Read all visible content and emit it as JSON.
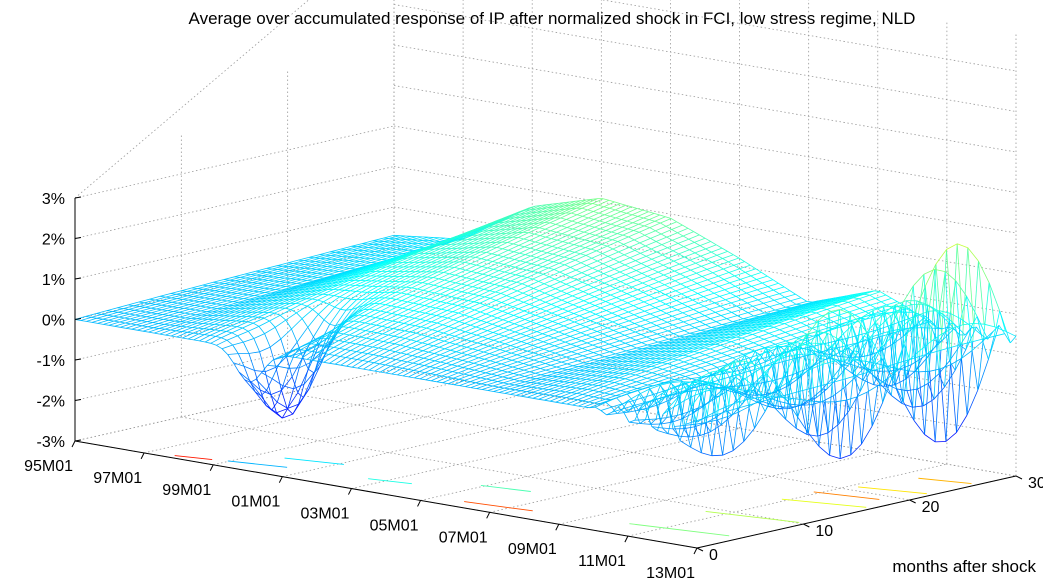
{
  "chart_data": {
    "type": "surface",
    "title": "Average over accumulated response of IP after normalized shock in FCI, low stress regime, NLD",
    "xlabel": "",
    "ylabel": "months after shock",
    "zlabel": "",
    "x_ticks": [
      "95M01",
      "97M01",
      "99M01",
      "01M01",
      "03M01",
      "05M01",
      "07M01",
      "09M01",
      "11M01",
      "13M01"
    ],
    "y_ticks": [
      "0",
      "10",
      "20",
      "30"
    ],
    "z_ticks": [
      "-3%",
      "-2%",
      "-1%",
      "0%",
      "1%",
      "2%",
      "3%"
    ],
    "zlim": [
      -3,
      3
    ],
    "ylim": [
      0,
      30
    ],
    "grid": true,
    "colormap": "jet",
    "contour_projection_on_floor": true,
    "approx_profile_at_horizon_30": {
      "dates": [
        "95M01",
        "97M01",
        "99M01",
        "01M01",
        "03M01",
        "05M01",
        "07M01",
        "09M01",
        "11M01",
        "13M01"
      ],
      "values": [
        0.3,
        0.5,
        1.6,
        2.1,
        1.9,
        1.2,
        0.4,
        1.0,
        0.3,
        0.5
      ]
    }
  }
}
